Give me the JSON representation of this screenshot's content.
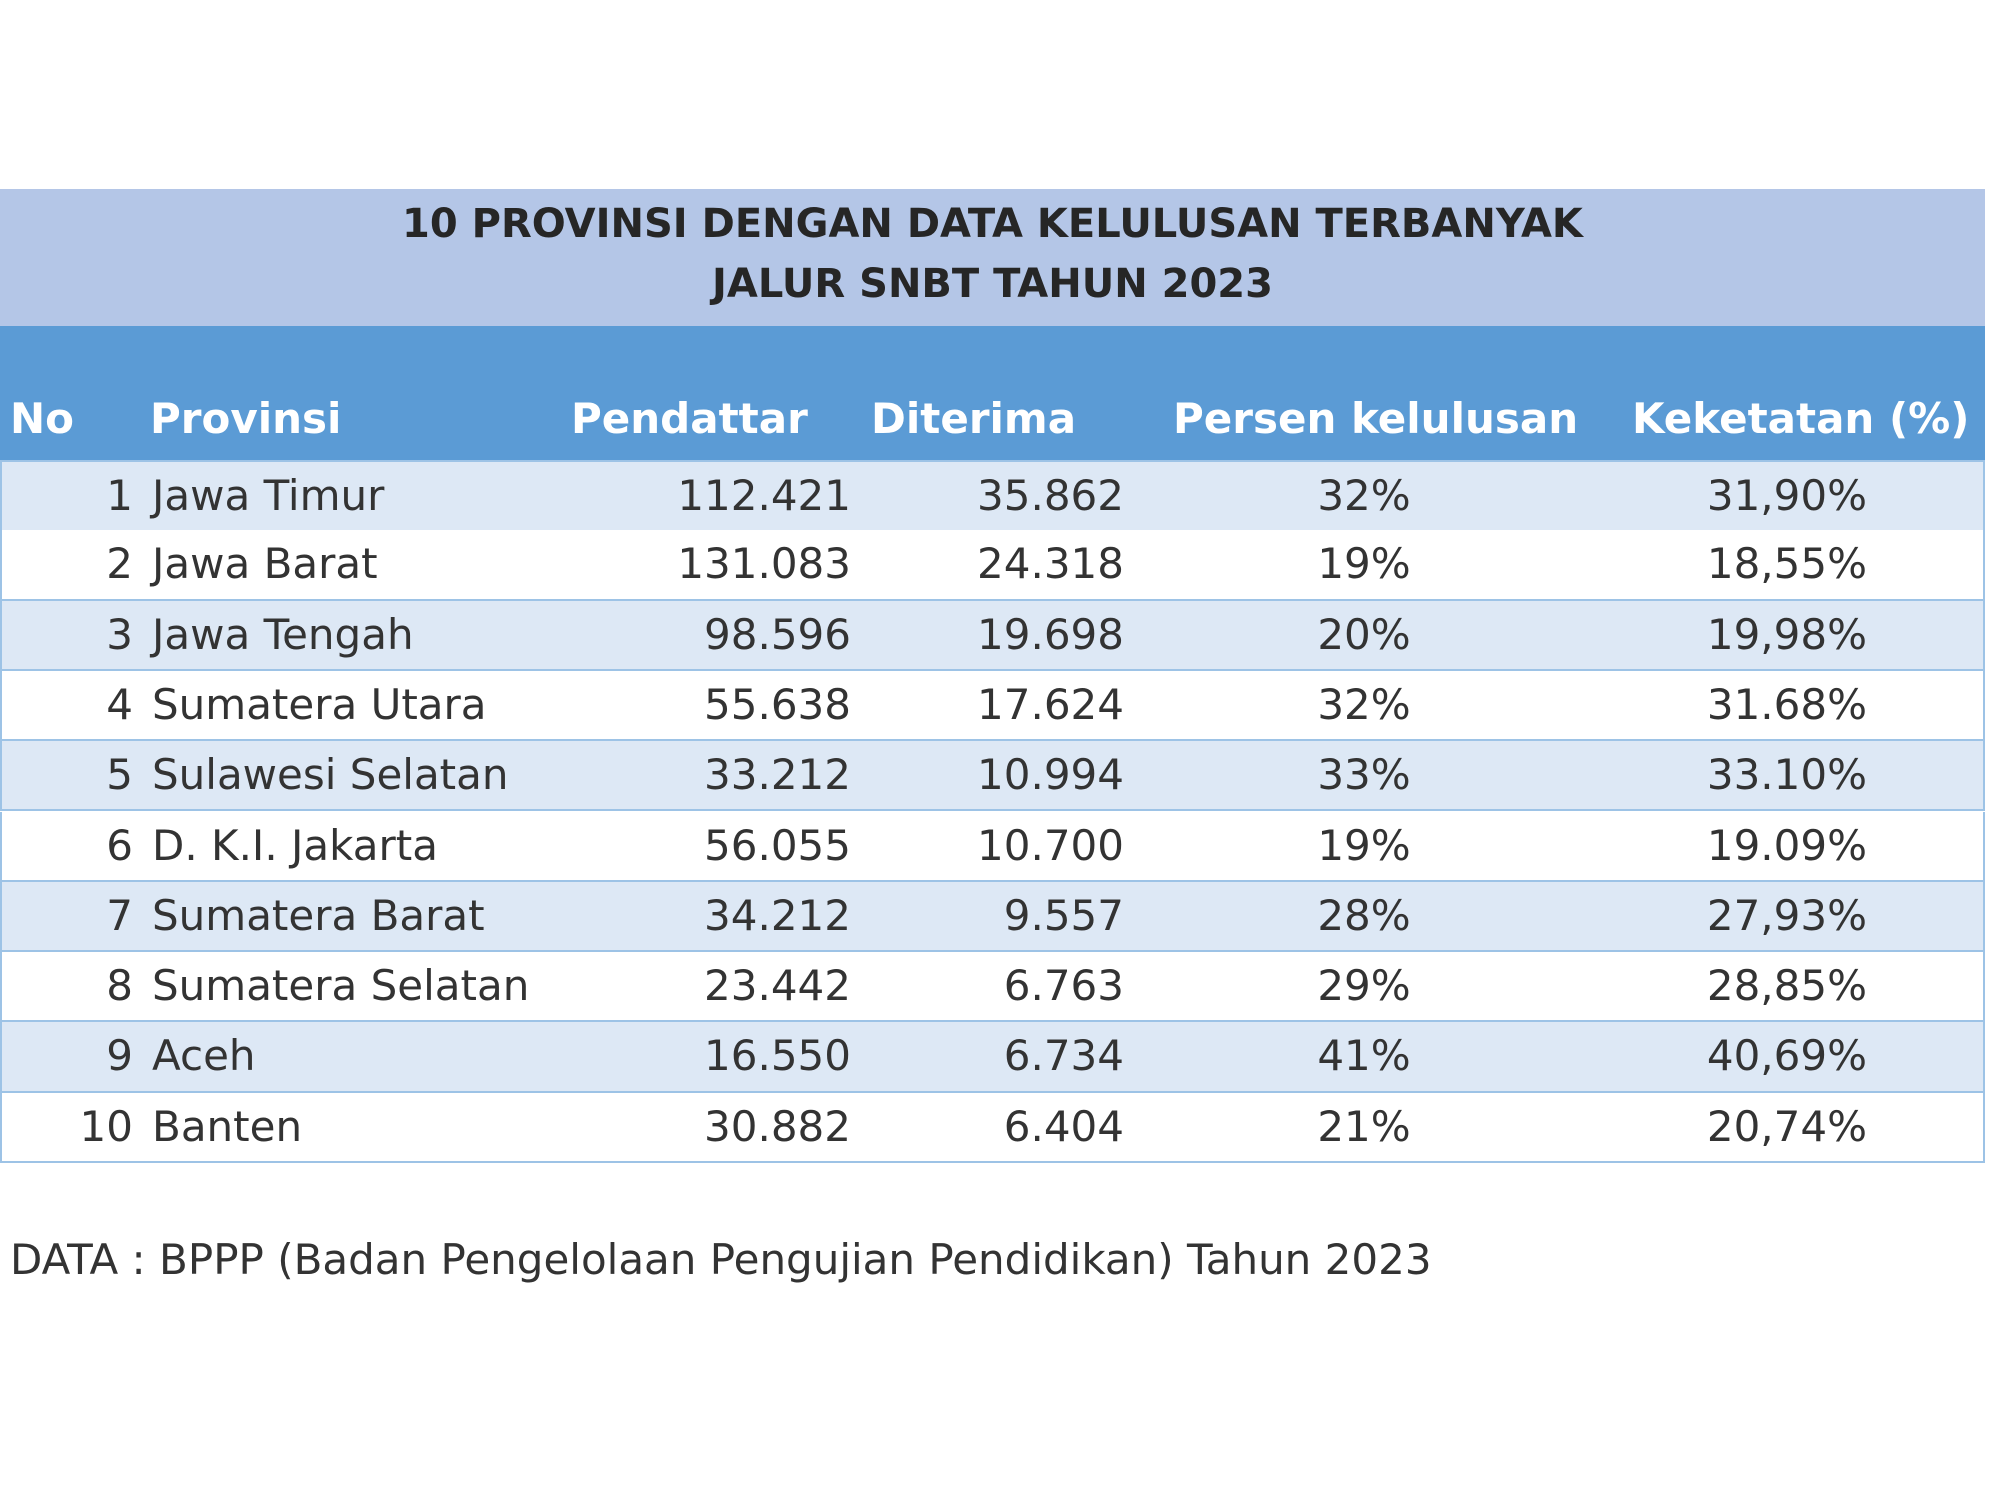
{
  "header": {
    "title_lines": [
      "10 PROVINSI DENGAN DATA KELULUSAN  TERBANYAK",
      "JALUR SNBT TAHUN 2023"
    ]
  },
  "table": {
    "columns": [
      "No",
      "Provinsi",
      "Pendattar",
      "Diterima",
      "Persen kelulusan",
      "Keketatan (%)"
    ],
    "rows": [
      [
        "1",
        "Jawa Timur",
        "112.421",
        "35.862",
        "32%",
        "31,90%"
      ],
      [
        "2",
        "Jawa Barat",
        "131.083",
        "24.318",
        "19%",
        "18,55%"
      ],
      [
        "3",
        "Jawa Tengah",
        "98.596",
        "19.698",
        "20%",
        "19,98%"
      ],
      [
        "4",
        "Sumatera Utara",
        "55.638",
        "17.624",
        "32%",
        "31.68%"
      ],
      [
        "5",
        "Sulawesi Selatan",
        "33.212",
        "10.994",
        "33%",
        "33.10%"
      ],
      [
        "6",
        "D. K.I. Jakarta",
        "56.055",
        "10.700",
        "19%",
        "19.09%"
      ],
      [
        "7",
        "Sumatera Barat",
        "34.212",
        "9.557",
        "28%",
        "27,93%"
      ],
      [
        "8",
        "Sumatera Selatan",
        "23.442",
        "6.763",
        "29%",
        "28,85%"
      ],
      [
        "9",
        "Aceh",
        "16.550",
        "6.734",
        "41%",
        "40,69%"
      ],
      [
        "10",
        "Banten",
        "30.882",
        "6.404",
        "21%",
        "20,74%"
      ]
    ]
  },
  "note": "DATA : BPPP (Badan Pengelolaan Pengujian Pendidikan) Tahun 2023"
}
